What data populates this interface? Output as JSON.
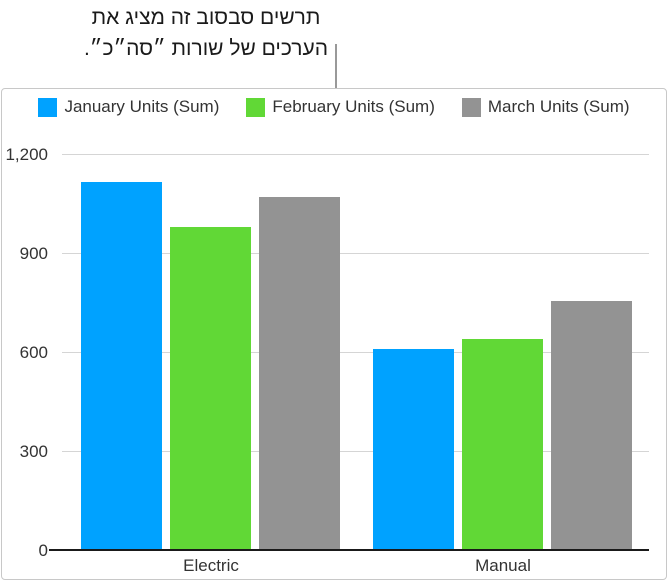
{
  "caption": {
    "line1": "תרשים סבסוב זה מציג את",
    "line2": "הערכים של שורות ״סה״כ״."
  },
  "chart_data": {
    "type": "bar",
    "categories": [
      "Electric",
      "Manual"
    ],
    "series": [
      {
        "name": "January Units (Sum)",
        "color": "#00a2ff",
        "values": [
          1115,
          610
        ]
      },
      {
        "name": "February Units (Sum)",
        "color": "#61d836",
        "values": [
          980,
          640
        ]
      },
      {
        "name": "March Units (Sum)",
        "color": "#939393",
        "values": [
          1070,
          755
        ]
      }
    ],
    "ylim": [
      0,
      1200
    ],
    "yticks": [
      0,
      300,
      600,
      900,
      1200
    ],
    "ytick_labels": [
      "0",
      "300",
      "600",
      "900",
      "1,200"
    ],
    "grid": true,
    "legend_position": "top",
    "colors": {
      "gridline": "#d5d5d5",
      "axis": "#1a1a1a",
      "text": "#333333",
      "frame_border": "#c8c8c8",
      "callout_line": "#999999"
    }
  }
}
